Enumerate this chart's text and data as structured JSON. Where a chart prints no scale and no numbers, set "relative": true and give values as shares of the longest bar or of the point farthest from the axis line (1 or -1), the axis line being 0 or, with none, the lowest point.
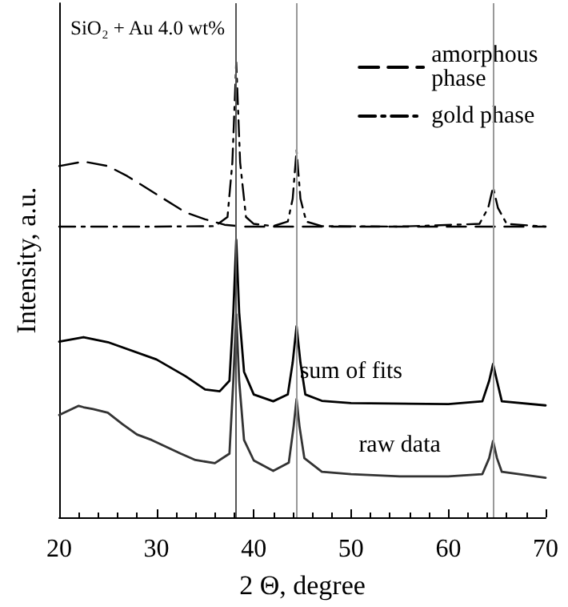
{
  "chart_data": {
    "type": "line",
    "title": "SiO₂ + Au 4.0 wt%",
    "xlabel": "2 Θ, degree",
    "ylabel": "Intensity, a.u.",
    "relative": true,
    "xlim": [
      20,
      70
    ],
    "xticks": [
      20,
      30,
      40,
      50,
      60,
      70
    ],
    "legend": "top right",
    "grid": false,
    "marker": "none",
    "series": [
      {
        "name": "amorphous phase",
        "color": "#000000",
        "line_style": "dashed",
        "x": [
          20,
          22.5,
          25,
          27,
          30,
          33,
          35,
          37,
          39,
          42,
          50,
          60,
          70
        ],
        "values": [
          0.772,
          0.782,
          0.772,
          0.75,
          0.71,
          0.67,
          0.655,
          0.643,
          0.639,
          0.639,
          0.639,
          0.639,
          0.639
        ]
      },
      {
        "name": "gold phase",
        "color": "#000000",
        "line_style": "dashdot",
        "x": [
          20,
          30,
          36,
          37.3,
          37.8,
          38.2,
          38.6,
          39.2,
          40,
          42,
          43.5,
          44,
          44.4,
          44.8,
          45.4,
          47,
          55,
          63.2,
          64.1,
          64.6,
          65.1,
          66,
          70
        ],
        "values": [
          0.639,
          0.639,
          0.64,
          0.66,
          0.78,
          1.0,
          0.78,
          0.66,
          0.645,
          0.64,
          0.65,
          0.7,
          0.807,
          0.7,
          0.65,
          0.64,
          0.639,
          0.645,
          0.68,
          0.726,
          0.68,
          0.645,
          0.639
        ]
      },
      {
        "name": "sum of fits",
        "color": "#000000",
        "line_style": "solid",
        "x": [
          20,
          22.5,
          25,
          30,
          33,
          35,
          36.5,
          37.5,
          37.9,
          38.2,
          38.5,
          39,
          40,
          42,
          43.5,
          44,
          44.4,
          44.8,
          45.3,
          47,
          50,
          60,
          63.5,
          64.2,
          64.6,
          65,
          65.5,
          70
        ],
        "values": [
          0.386,
          0.396,
          0.385,
          0.347,
          0.31,
          0.281,
          0.277,
          0.3,
          0.45,
          0.61,
          0.45,
          0.32,
          0.27,
          0.255,
          0.27,
          0.34,
          0.42,
          0.34,
          0.27,
          0.256,
          0.251,
          0.249,
          0.255,
          0.3,
          0.337,
          0.3,
          0.255,
          0.246
        ]
      },
      {
        "name": "raw data",
        "color": "#333333",
        "line_style": "solid",
        "x": [
          20,
          21,
          22,
          22.5,
          23.5,
          25,
          26.5,
          28,
          29.5,
          31,
          32.5,
          34,
          36,
          37.5,
          37.9,
          38.2,
          38.5,
          39,
          40,
          42,
          43.6,
          44.1,
          44.4,
          44.7,
          45.2,
          47,
          50,
          55,
          60,
          63.5,
          64.2,
          64.6,
          65,
          65.5,
          70
        ],
        "values": [
          0.225,
          0.235,
          0.245,
          0.242,
          0.238,
          0.23,
          0.205,
          0.182,
          0.17,
          0.155,
          0.14,
          0.126,
          0.119,
          0.14,
          0.3,
          0.446,
          0.3,
          0.17,
          0.125,
          0.102,
          0.12,
          0.2,
          0.26,
          0.2,
          0.13,
          0.1,
          0.095,
          0.09,
          0.09,
          0.095,
          0.13,
          0.168,
          0.13,
          0.1,
          0.087
        ]
      }
    ],
    "ref_lines": [
      {
        "axis": "x",
        "value": 38.2,
        "color": "#555555"
      },
      {
        "axis": "x",
        "value": 44.4,
        "color": "#999999"
      },
      {
        "axis": "x",
        "value": 64.6,
        "color": "#999999"
      }
    ]
  }
}
